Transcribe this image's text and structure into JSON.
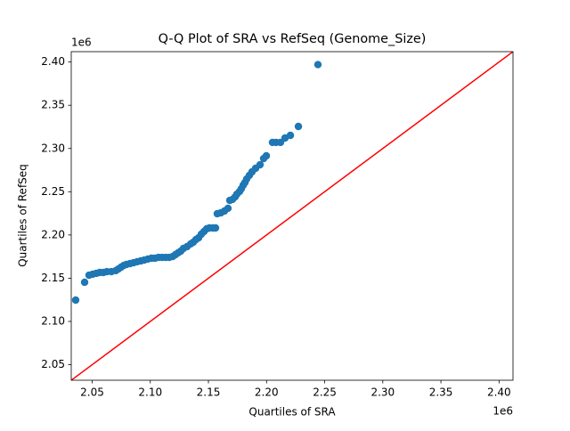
{
  "chart_data": {
    "type": "scatter",
    "title": "Q-Q Plot of SRA vs RefSeq (Genome_Size)",
    "x_label": "Quartiles of SRA",
    "y_label": "Quartiles of RefSeq",
    "x_offset_label": "1e6",
    "y_offset_label": "1e6",
    "reference_line_color": "#ff0000",
    "xlim": [
      2032000,
      2412000
    ],
    "ylim": [
      2032000,
      2412000
    ],
    "xticks": [
      {
        "value": 2050000,
        "label": "2.05"
      },
      {
        "value": 2100000,
        "label": "2.10"
      },
      {
        "value": 2150000,
        "label": "2.15"
      },
      {
        "value": 2200000,
        "label": "2.20"
      },
      {
        "value": 2250000,
        "label": "2.25"
      },
      {
        "value": 2300000,
        "label": "2.30"
      },
      {
        "value": 2350000,
        "label": "2.35"
      },
      {
        "value": 2400000,
        "label": "2.40"
      }
    ],
    "yticks": [
      {
        "value": 2050000,
        "label": "2.05"
      },
      {
        "value": 2100000,
        "label": "2.10"
      },
      {
        "value": 2150000,
        "label": "2.15"
      },
      {
        "value": 2200000,
        "label": "2.20"
      },
      {
        "value": 2250000,
        "label": "2.25"
      },
      {
        "value": 2300000,
        "label": "2.30"
      },
      {
        "value": 2350000,
        "label": "2.35"
      },
      {
        "value": 2400000,
        "label": "2.40"
      }
    ],
    "series": [
      {
        "color": "#1f77b4",
        "x": [
          2035800,
          2043500,
          2047300,
          2050400,
          2053500,
          2056500,
          2059600,
          2062600,
          2066500,
          2070300,
          2072600,
          2074900,
          2077200,
          2079500,
          2082600,
          2085600,
          2088700,
          2091800,
          2094800,
          2097900,
          2101000,
          2104000,
          2107100,
          2110100,
          2113200,
          2116300,
          2119300,
          2121600,
          2123900,
          2126200,
          2128500,
          2131600,
          2134700,
          2137000,
          2139300,
          2141600,
          2143900,
          2146200,
          2148500,
          2150800,
          2153800,
          2156100,
          2157600,
          2160700,
          2163800,
          2166800,
          2168400,
          2170700,
          2173000,
          2174500,
          2176800,
          2178300,
          2179900,
          2181400,
          2182900,
          2185200,
          2187500,
          2190600,
          2194400,
          2197500,
          2199800,
          2205100,
          2208200,
          2212000,
          2215900,
          2220500,
          2227400,
          2244200
        ],
        "values": [
          2124700,
          2145300,
          2153500,
          2154600,
          2155600,
          2156600,
          2156600,
          2157600,
          2157600,
          2158700,
          2160700,
          2162800,
          2164800,
          2165900,
          2166900,
          2167900,
          2169000,
          2170000,
          2171000,
          2172100,
          2173100,
          2173100,
          2174100,
          2174100,
          2174100,
          2174100,
          2175100,
          2177200,
          2179300,
          2181300,
          2184400,
          2186500,
          2189600,
          2191600,
          2194700,
          2196800,
          2200900,
          2204000,
          2207100,
          2208100,
          2208100,
          2208100,
          2224600,
          2225600,
          2227700,
          2230800,
          2240000,
          2241100,
          2244100,
          2247200,
          2250300,
          2253400,
          2257500,
          2260600,
          2264700,
          2268900,
          2273000,
          2277100,
          2281200,
          2288400,
          2291500,
          2307000,
          2307000,
          2307000,
          2312100,
          2315200,
          2325500,
          2397000
        ]
      }
    ]
  }
}
